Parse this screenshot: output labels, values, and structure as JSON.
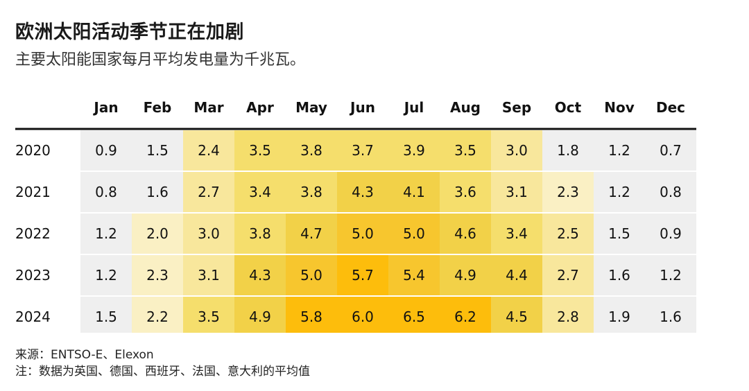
{
  "title": "欧洲太阳活动季节正在加剧",
  "subtitle": "主要太阳能国家每月平均发电量为千兆瓦。",
  "chart_data": {
    "type": "heatmap",
    "columns": [
      "Jan",
      "Feb",
      "Mar",
      "Apr",
      "May",
      "Jun",
      "Jul",
      "Aug",
      "Sep",
      "Oct",
      "Nov",
      "Dec"
    ],
    "rows": [
      "2020",
      "2021",
      "2022",
      "2023",
      "2024"
    ],
    "values": [
      [
        0.9,
        1.5,
        2.4,
        3.5,
        3.8,
        3.7,
        3.9,
        3.5,
        3.0,
        1.8,
        1.2,
        0.7
      ],
      [
        0.8,
        1.6,
        2.7,
        3.4,
        3.8,
        4.3,
        4.1,
        3.6,
        3.1,
        2.3,
        1.2,
        0.8
      ],
      [
        1.2,
        2.0,
        3.0,
        3.8,
        4.7,
        5.0,
        5.0,
        4.6,
        3.4,
        2.5,
        1.5,
        0.9
      ],
      [
        1.2,
        2.3,
        3.1,
        4.3,
        5.0,
        5.7,
        5.4,
        4.9,
        4.4,
        2.7,
        1.6,
        1.2
      ],
      [
        1.5,
        2.2,
        3.5,
        4.9,
        5.8,
        6.0,
        6.5,
        6.2,
        4.5,
        2.8,
        1.9,
        1.6
      ]
    ],
    "color_scale": [
      "#efefef",
      "#faf0c4",
      "#f8e79c",
      "#f5de6c",
      "#f2d148",
      "#f7c62e",
      "#fdbd0c"
    ]
  },
  "notes": {
    "source": "来源：ENTSO-E、Elexon",
    "note": "注：数据为英国、德国、西班牙、法国、意大利的平均值"
  }
}
